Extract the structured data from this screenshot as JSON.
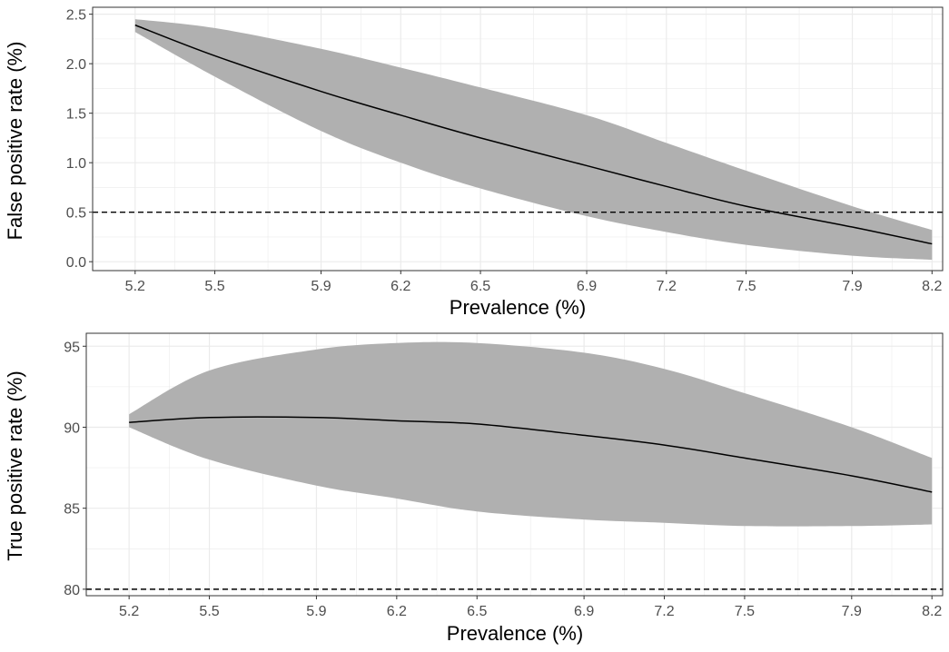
{
  "chart_data": [
    {
      "type": "line",
      "xlabel": "Prevalence (%)",
      "ylabel": "False positive rate (%)",
      "x_ticks": [
        5.2,
        5.5,
        5.9,
        6.2,
        6.5,
        6.9,
        7.2,
        7.5,
        7.9,
        8.2
      ],
      "y_ticks": [
        "0.0",
        "0.5",
        "1.0",
        "1.5",
        "2.0",
        "2.5"
      ],
      "xlim": [
        5.04,
        8.24
      ],
      "ylim": [
        -0.09,
        2.57
      ],
      "reference_line": 0.5,
      "grid": true,
      "legend": "none",
      "colors": {
        "ribbon": "#b0b0b0",
        "line": "#000000",
        "grid": "#ebebeb",
        "reference": "#000000"
      },
      "series": [
        {
          "x": [
            5.2,
            5.5,
            5.9,
            6.2,
            6.5,
            6.9,
            7.2,
            7.5,
            7.9,
            8.2
          ],
          "y": [
            2.39,
            2.08,
            1.72,
            1.48,
            1.25,
            0.97,
            0.76,
            0.56,
            0.35,
            0.18
          ],
          "lower": [
            2.32,
            1.87,
            1.32,
            1.0,
            0.74,
            0.46,
            0.3,
            0.17,
            0.06,
            0.02
          ],
          "upper": [
            2.45,
            2.36,
            2.15,
            1.96,
            1.76,
            1.48,
            1.2,
            0.92,
            0.56,
            0.32
          ]
        }
      ]
    },
    {
      "type": "line",
      "xlabel": "Prevalence (%)",
      "ylabel": "True positive rate (%)",
      "x_ticks": [
        5.2,
        5.5,
        5.9,
        6.2,
        6.5,
        6.9,
        7.2,
        7.5,
        7.9,
        8.2
      ],
      "y_ticks": [
        "80",
        "85",
        "90",
        "95"
      ],
      "xlim": [
        5.04,
        8.24
      ],
      "ylim": [
        79.6,
        95.8
      ],
      "reference_line": 80,
      "grid": true,
      "legend": "none",
      "colors": {
        "ribbon": "#b0b0b0",
        "line": "#000000",
        "grid": "#ebebeb",
        "reference": "#000000"
      },
      "series": [
        {
          "x": [
            5.2,
            5.5,
            5.9,
            6.2,
            6.5,
            6.9,
            7.2,
            7.5,
            7.9,
            8.2
          ],
          "y": [
            90.3,
            90.6,
            90.6,
            90.4,
            90.2,
            89.5,
            88.9,
            88.1,
            87.0,
            86.0
          ],
          "lower": [
            90.0,
            88.0,
            86.4,
            85.6,
            84.8,
            84.3,
            84.1,
            83.9,
            83.9,
            84.0
          ],
          "upper": [
            90.8,
            93.5,
            94.8,
            95.2,
            95.2,
            94.6,
            93.6,
            92.1,
            90.0,
            88.1
          ]
        }
      ]
    }
  ]
}
